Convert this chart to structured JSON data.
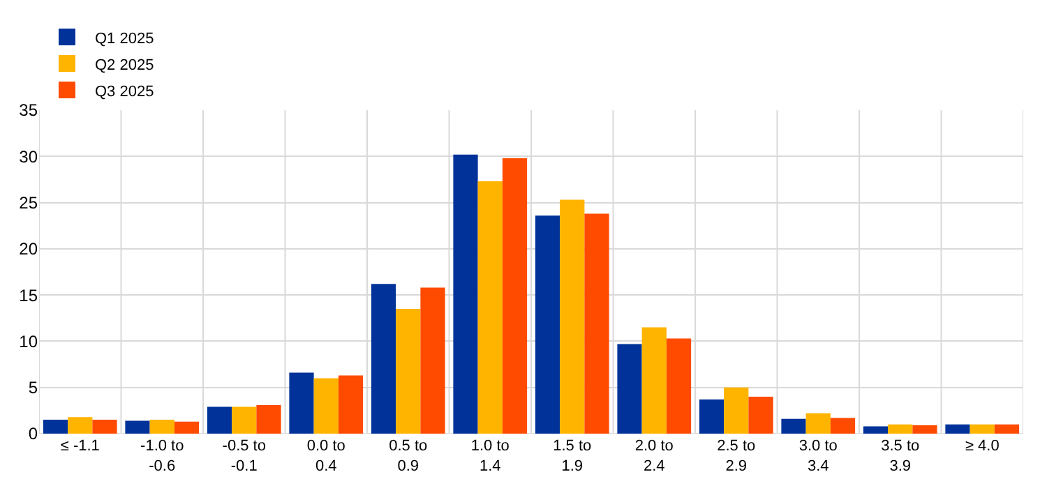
{
  "chart_data": {
    "type": "bar",
    "categories": [
      "≤ -1.1",
      "-1.0 to -0.6",
      "-0.5 to -0.1",
      "0.0 to 0.4",
      "0.5 to 0.9",
      "1.0 to 1.4",
      "1.5 to 1.9",
      "2.0 to 2.4",
      "2.5 to 2.9",
      "3.0 to 3.4",
      "3.5 to 3.9",
      "≥ 4.0"
    ],
    "series": [
      {
        "name": "Q1 2025",
        "color": "#003299",
        "values": [
          1.5,
          1.4,
          2.9,
          6.6,
          16.2,
          30.2,
          23.6,
          9.7,
          3.7,
          1.6,
          0.8,
          1.0
        ]
      },
      {
        "name": "Q2 2025",
        "color": "#ffb400",
        "values": [
          1.8,
          1.5,
          2.9,
          6.0,
          13.5,
          27.3,
          25.3,
          11.5,
          5.0,
          2.2,
          1.0,
          1.0
        ]
      },
      {
        "name": "Q3 2025",
        "color": "#ff4b00",
        "values": [
          1.5,
          1.3,
          3.1,
          6.3,
          15.8,
          29.8,
          23.8,
          10.3,
          4.0,
          1.7,
          0.9,
          1.0
        ]
      }
    ],
    "ylim": [
      0,
      35
    ],
    "yticks": [
      0,
      5,
      10,
      15,
      20,
      25,
      30,
      35
    ],
    "grid": true,
    "legend": "top left"
  }
}
